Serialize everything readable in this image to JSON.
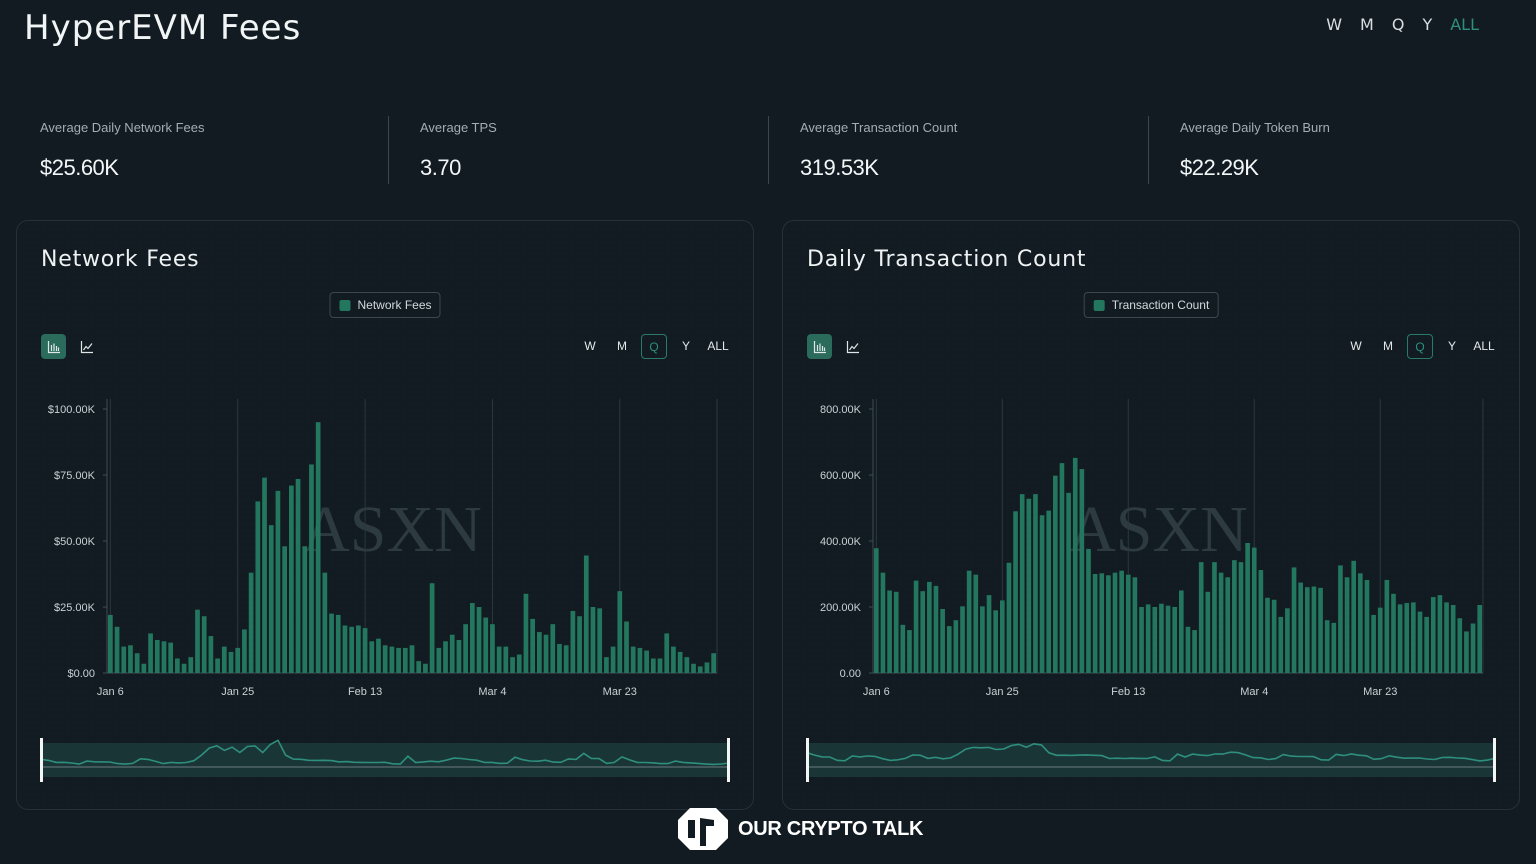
{
  "header": {
    "title": "HyperEVM Fees",
    "range_options": [
      "W",
      "M",
      "Q",
      "Y",
      "ALL"
    ],
    "active_range": "ALL"
  },
  "stats": [
    {
      "label": "Average Daily Network Fees",
      "value": "$25.60K"
    },
    {
      "label": "Average TPS",
      "value": "3.70"
    },
    {
      "label": "Average Transaction Count",
      "value": "319.53K"
    },
    {
      "label": "Average Daily Token Burn",
      "value": "$22.29K"
    }
  ],
  "colors": {
    "bar": "#24775f",
    "accent": "#2f8f7d",
    "watermark": "#2d3a40"
  },
  "watermark": "ASXN",
  "cards": [
    {
      "title": "Network Fees",
      "legend": "Network Fees",
      "chart_types": [
        "bar-chart-icon",
        "line-chart-icon"
      ],
      "active_chart_type": "bar-chart-icon",
      "range_options": [
        "W",
        "M",
        "Q",
        "Y",
        "ALL"
      ],
      "active_range": "Q"
    },
    {
      "title": "Daily Transaction Count",
      "legend": "Transaction Count",
      "chart_types": [
        "bar-chart-icon",
        "line-chart-icon"
      ],
      "active_chart_type": "bar-chart-icon",
      "range_options": [
        "W",
        "M",
        "Q",
        "Y",
        "ALL"
      ],
      "active_range": "Q"
    }
  ],
  "footer": {
    "brand": "OUR CRYPTO TALK"
  },
  "chart_data": [
    {
      "type": "bar",
      "title": "Network Fees",
      "xlabel": "",
      "ylabel": "",
      "x_start": "Jan 6",
      "x_ticks": [
        {
          "label": "Jan 6",
          "index": 0
        },
        {
          "label": "Jan 25",
          "index": 19
        },
        {
          "label": "Feb 13",
          "index": 38
        },
        {
          "label": "Mar 4",
          "index": 57
        },
        {
          "label": "Mar 23",
          "index": 76
        }
      ],
      "y_ticks": [
        "$0.00",
        "$25.00K",
        "$50.00K",
        "$75.00K",
        "$100.00K"
      ],
      "ylim": [
        0,
        100000
      ],
      "grid": "vertical",
      "legend": "top-center",
      "series": [
        {
          "name": "Network Fees",
          "values": [
            22000,
            17500,
            10000,
            10500,
            7500,
            3500,
            15000,
            12500,
            12000,
            11500,
            5500,
            3500,
            6000,
            24000,
            21500,
            14000,
            5500,
            10000,
            8000,
            9500,
            16500,
            38000,
            65000,
            74000,
            56000,
            69000,
            48000,
            71000,
            73500,
            48000,
            79000,
            95000,
            38000,
            22500,
            22000,
            18000,
            17500,
            18000,
            17000,
            12000,
            13000,
            10500,
            10000,
            9500,
            9500,
            10500,
            4500,
            3500,
            34000,
            9500,
            12000,
            14500,
            12500,
            18500,
            26500,
            25000,
            21000,
            18500,
            10000,
            10000,
            6000,
            7000,
            30000,
            20500,
            15500,
            14500,
            18500,
            11000,
            10500,
            23500,
            21500,
            44500,
            25000,
            24500,
            6000,
            10000,
            31000,
            19500,
            10000,
            9500,
            8500,
            5500,
            5500,
            15000,
            10000,
            8000,
            6000,
            3500,
            2500,
            4000,
            7500
          ]
        }
      ]
    },
    {
      "type": "bar",
      "title": "Daily Transaction Count",
      "xlabel": "",
      "ylabel": "",
      "x_start": "Jan 6",
      "x_ticks": [
        {
          "label": "Jan 6",
          "index": 0
        },
        {
          "label": "Jan 25",
          "index": 19
        },
        {
          "label": "Feb 13",
          "index": 38
        },
        {
          "label": "Mar 4",
          "index": 57
        },
        {
          "label": "Mar 23",
          "index": 76
        }
      ],
      "y_ticks": [
        "0.00",
        "200.00K",
        "400.00K",
        "600.00K",
        "800.00K"
      ],
      "ylim": [
        0,
        800000
      ],
      "grid": "vertical",
      "legend": "top-center",
      "series": [
        {
          "name": "Transaction Count",
          "values": [
            378000,
            304000,
            250000,
            246000,
            146000,
            130000,
            280000,
            248000,
            276000,
            264000,
            194000,
            142000,
            160000,
            202000,
            310000,
            298000,
            202000,
            236000,
            190000,
            220000,
            334000,
            490000,
            542000,
            528000,
            542000,
            478000,
            492000,
            598000,
            636000,
            546000,
            652000,
            618000,
            376000,
            300000,
            302000,
            296000,
            304000,
            310000,
            298000,
            290000,
            200000,
            208000,
            200000,
            210000,
            204000,
            200000,
            250000,
            140000,
            130000,
            336000,
            246000,
            336000,
            304000,
            290000,
            342000,
            336000,
            394000,
            380000,
            312000,
            228000,
            222000,
            170000,
            196000,
            320000,
            274000,
            260000,
            262000,
            258000,
            160000,
            152000,
            326000,
            290000,
            340000,
            302000,
            282000,
            176000,
            198000,
            282000,
            240000,
            208000,
            212000,
            214000,
            186000,
            170000,
            230000,
            236000,
            214000,
            206000,
            166000,
            126000,
            150000,
            206000
          ]
        }
      ]
    }
  ]
}
